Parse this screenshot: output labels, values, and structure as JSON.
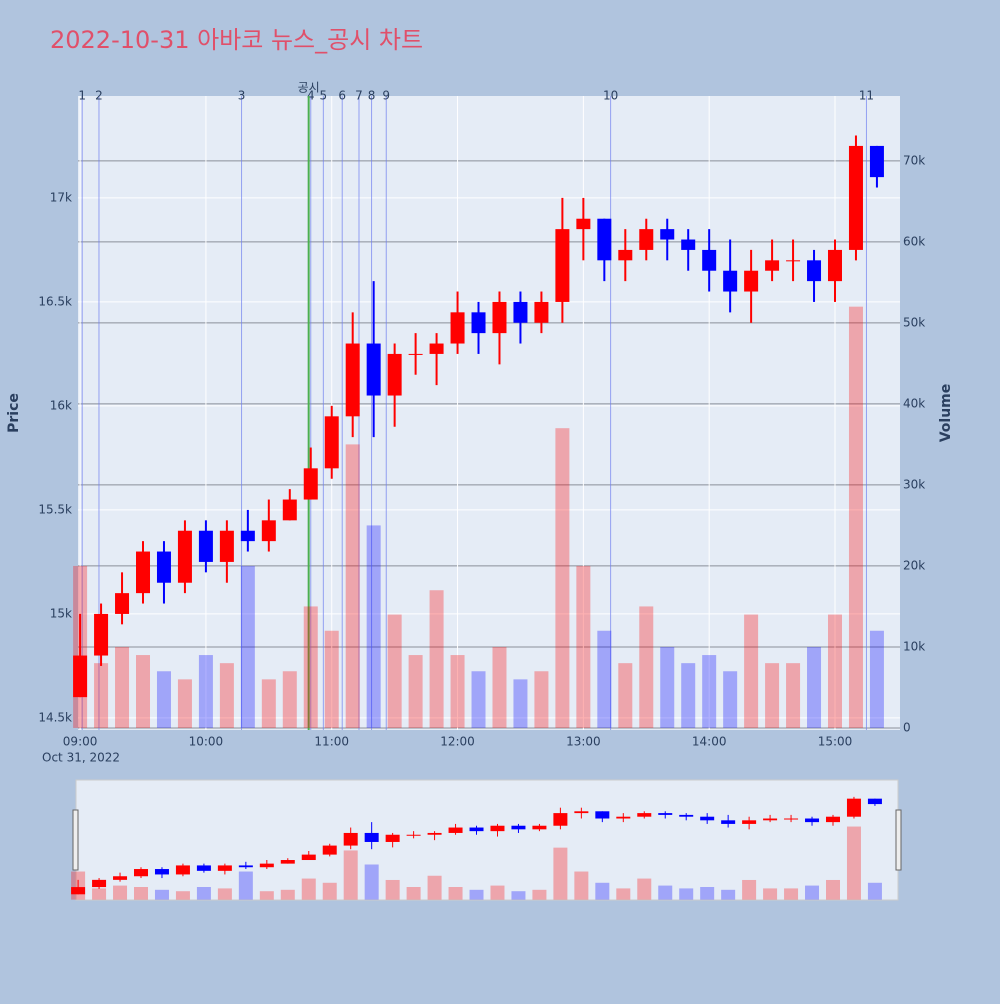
{
  "chart_data": {
    "type": "candlestick",
    "title": "2022-10-31 아바코 뉴스_공시 차트",
    "y_label": "Price",
    "y2_label": "Volume",
    "x_date_label": "Oct 31, 2022",
    "increasing_color": "#ff0000",
    "decreasing_color": "#0000ff",
    "x": [
      "09:00",
      "09:10",
      "09:20",
      "09:30",
      "09:40",
      "09:50",
      "10:00",
      "10:10",
      "10:20",
      "10:30",
      "10:40",
      "10:50",
      "11:00",
      "11:10",
      "11:20",
      "11:30",
      "11:40",
      "11:50",
      "12:00",
      "12:10",
      "12:20",
      "12:30",
      "12:40",
      "12:50",
      "13:00",
      "13:10",
      "13:20",
      "13:30",
      "13:40",
      "13:50",
      "14:00",
      "14:10",
      "14:20",
      "14:30",
      "14:40",
      "14:50",
      "15:00",
      "15:10",
      "15:20"
    ],
    "open": [
      14600,
      14800,
      15000,
      15100,
      15300,
      15150,
      15400,
      15250,
      15400,
      15350,
      15450,
      15550,
      15700,
      15950,
      16300,
      16050,
      16250,
      16250,
      16300,
      16450,
      16350,
      16500,
      16400,
      16500,
      16850,
      16900,
      16700,
      16750,
      16850,
      16800,
      16750,
      16650,
      16550,
      16650,
      16700,
      16700,
      16600,
      16750,
      17250
    ],
    "high": [
      15000,
      15050,
      15200,
      15350,
      15350,
      15450,
      15450,
      15450,
      15500,
      15550,
      15600,
      15800,
      16000,
      16450,
      16600,
      16300,
      16350,
      16350,
      16550,
      16500,
      16550,
      16550,
      16550,
      17000,
      17000,
      16900,
      16850,
      16900,
      16900,
      16850,
      16850,
      16800,
      16750,
      16800,
      16800,
      16750,
      16800,
      17300,
      17250
    ],
    "low": [
      14600,
      14750,
      14950,
      15050,
      15050,
      15100,
      15200,
      15150,
      15300,
      15300,
      15450,
      15550,
      15650,
      15850,
      15850,
      15900,
      16150,
      16100,
      16250,
      16250,
      16200,
      16300,
      16350,
      16400,
      16700,
      16600,
      16600,
      16700,
      16700,
      16650,
      16550,
      16450,
      16400,
      16600,
      16600,
      16500,
      16500,
      16700,
      17050
    ],
    "close": [
      14800,
      15000,
      15100,
      15300,
      15150,
      15400,
      15250,
      15400,
      15350,
      15450,
      15550,
      15700,
      15950,
      16300,
      16050,
      16250,
      16250,
      16300,
      16450,
      16350,
      16500,
      16400,
      16500,
      16850,
      16900,
      16700,
      16750,
      16850,
      16800,
      16750,
      16650,
      16550,
      16650,
      16700,
      16700,
      16600,
      16750,
      17250,
      17100
    ],
    "volume": [
      20000,
      8000,
      10000,
      9000,
      7000,
      6000,
      9000,
      8000,
      20000,
      6000,
      7000,
      15000,
      12000,
      35000,
      25000,
      14000,
      9000,
      17000,
      9000,
      7000,
      10000,
      6000,
      7000,
      37000,
      20000,
      12000,
      8000,
      15000,
      10000,
      8000,
      9000,
      7000,
      14000,
      8000,
      8000,
      10000,
      14000,
      52000,
      12000
    ],
    "xlim": [
      "08:59",
      "15:31"
    ],
    "xticks": [
      "09:00",
      "10:00",
      "11:00",
      "12:00",
      "13:00",
      "14:00",
      "15:00"
    ],
    "ylim": [
      14442,
      17490
    ],
    "yticks": [
      {
        "value": 14500,
        "label": "14.5k"
      },
      {
        "value": 15000,
        "label": "15k"
      },
      {
        "value": 15500,
        "label": "15.5k"
      },
      {
        "value": 16000,
        "label": "16k"
      },
      {
        "value": 16500,
        "label": "16.5k"
      },
      {
        "value": 17000,
        "label": "17k"
      }
    ],
    "y2lim": [
      -250,
      78000
    ],
    "y2ticks": [
      0,
      {
        "value": 10000,
        "label": "10k"
      },
      {
        "value": 20000,
        "label": "20k"
      },
      {
        "value": 30000,
        "label": "30k"
      },
      {
        "value": 40000,
        "label": "40k"
      },
      {
        "value": 50000,
        "label": "50k"
      },
      {
        "value": 60000,
        "label": "60k"
      },
      {
        "value": 70000,
        "label": "70k"
      }
    ],
    "events": [
      {
        "label": "1",
        "x": "09:01"
      },
      {
        "label": "2",
        "x": "09:09"
      },
      {
        "label": "3",
        "x": "10:17"
      },
      {
        "label": "4",
        "x": "10:50"
      },
      {
        "label": "5",
        "x": "10:56"
      },
      {
        "label": "6",
        "x": "11:05"
      },
      {
        "label": "7",
        "x": "11:13"
      },
      {
        "label": "8",
        "x": "11:19"
      },
      {
        "label": "9",
        "x": "11:26"
      },
      {
        "label": "10",
        "x": "13:13"
      },
      {
        "label": "11",
        "x": "15:15"
      }
    ],
    "event_color": "#6f7ff0",
    "disclosure": {
      "label": "공시",
      "x": "10:49",
      "color": "#4caf50"
    },
    "grid": true
  }
}
